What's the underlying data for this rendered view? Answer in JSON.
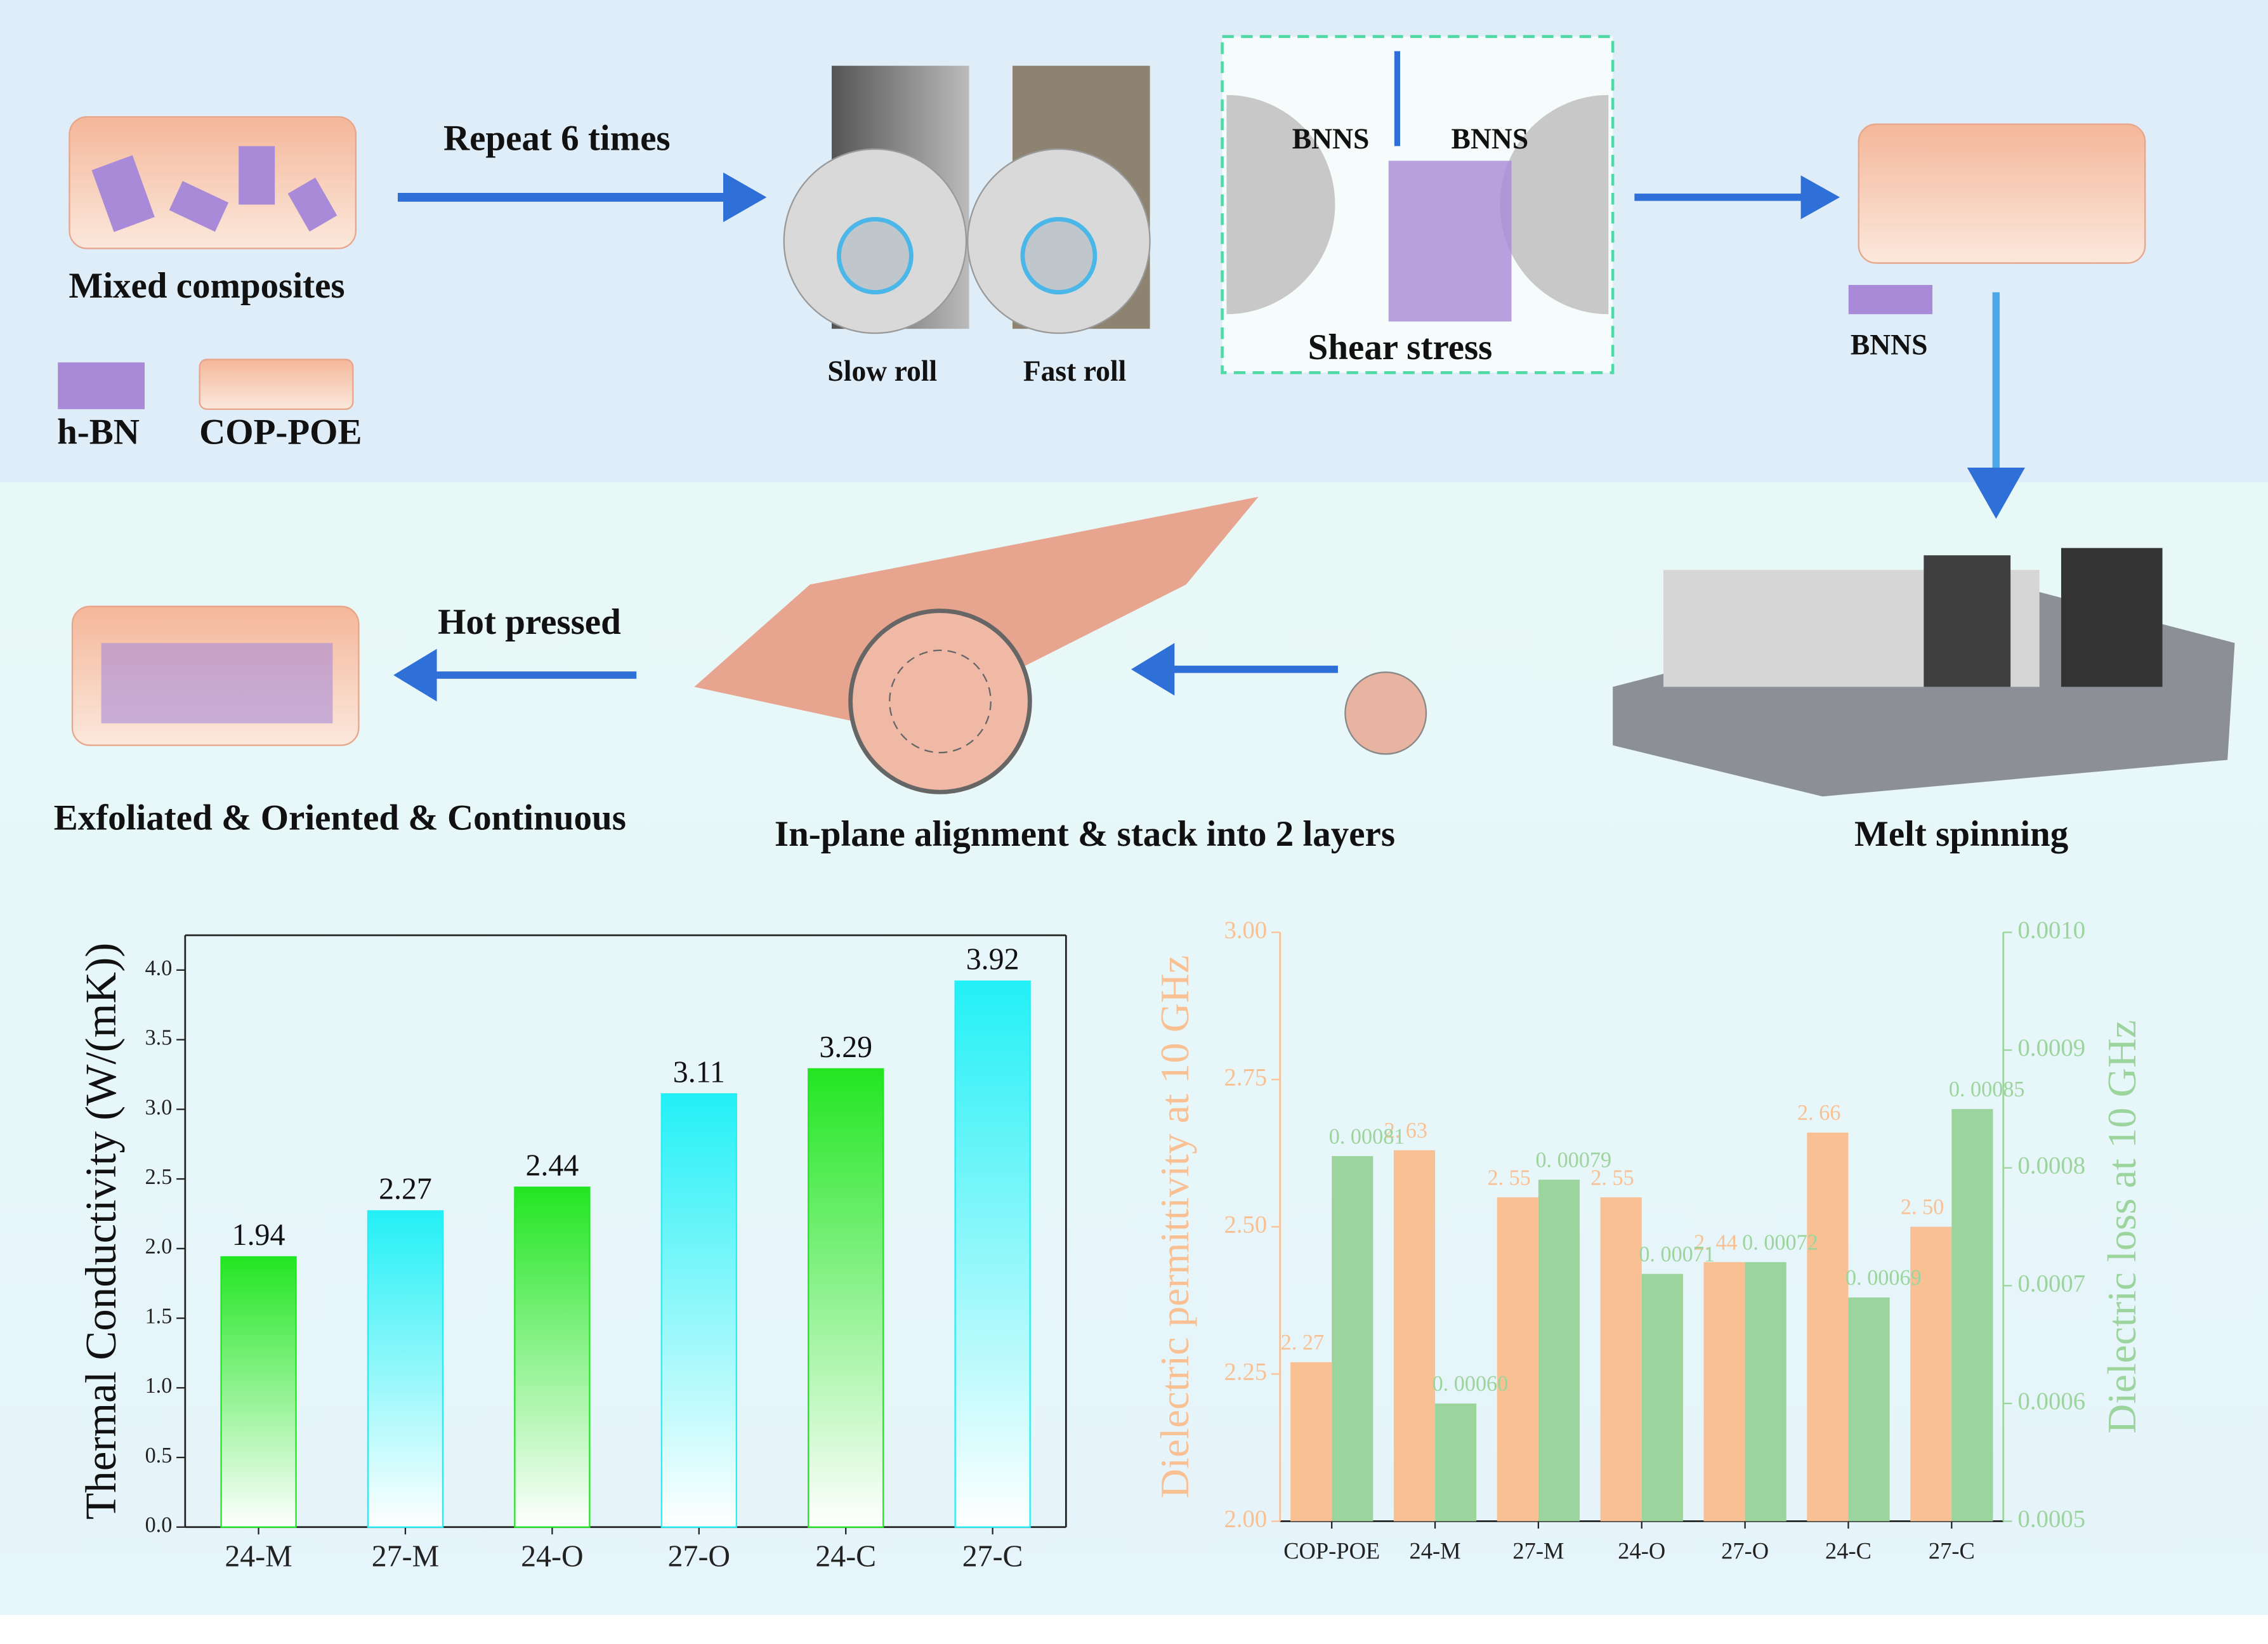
{
  "diagram": {
    "repeat": "Repeat 6 times",
    "mixed": "Mixed composites",
    "hbn": "h-BN",
    "cop": "COP-POE",
    "slow": "Slow roll",
    "fast": "Fast roll",
    "bnns_left": "BNNS",
    "bnns_right": "BNNS",
    "shear": "Shear stress",
    "bnns_box": "BNNS",
    "hot": "Hot pressed",
    "exfoliated": "Exfoliated & Oriented & Continuous",
    "inplane": "In-plane alignment & stack into 2 layers",
    "melt": "Melt spinning"
  },
  "chart_data": [
    {
      "type": "bar",
      "ylabel": "Thermal Conductivity (W/(mK))",
      "categories": [
        "24-M",
        "27-M",
        "24-O",
        "27-O",
        "24-C",
        "27-C"
      ],
      "values": [
        1.94,
        2.27,
        2.44,
        3.11,
        3.29,
        3.92
      ],
      "colors": [
        "#22e622",
        "#22f0f6",
        "#22e622",
        "#22f0f6",
        "#22e622",
        "#22f0f6"
      ],
      "ylim": [
        0,
        4.25
      ],
      "yticks": [
        {
          "value": 0,
          "label": "0.0"
        },
        0.5,
        {
          "value": 1,
          "label": "1.0"
        },
        1.5,
        {
          "value": 2,
          "label": "2.0"
        },
        2.5,
        {
          "value": 3,
          "label": "3.0"
        },
        3.5,
        {
          "value": 4,
          "label": "4.0"
        }
      ]
    },
    {
      "type": "bar",
      "ylabel": "Dielectric permittivity at 10 GHz",
      "y2label": "Dielectric loss at 10 GHz",
      "categories": [
        "COP-POE",
        "24-M",
        "27-M",
        "24-O",
        "27-O",
        "24-C",
        "27-C"
      ],
      "series": [
        {
          "color": "#f9c193",
          "values": [
            2.27,
            2.63,
            2.55,
            2.55,
            2.44,
            2.66,
            2.5
          ],
          "value_labels": [
            "2. 27",
            "2. 63",
            "2. 55",
            "2. 55",
            "2. 44",
            "2. 66",
            "2. 50"
          ]
        },
        {
          "color": "#9cd49d",
          "axis": "y2",
          "values": [
            0.00081,
            0.0006,
            0.00079,
            0.00071,
            0.00072,
            0.00069,
            0.00085
          ],
          "value_labels": [
            "0. 00081",
            "0. 00060",
            "0. 00079",
            "0. 00071",
            "0. 00072",
            "0. 00069",
            "0. 00085"
          ]
        }
      ],
      "ylim": [
        2,
        3
      ],
      "yticks": [
        {
          "value": 2,
          "label": "2.00"
        },
        2.25,
        {
          "value": 2.5,
          "label": "2.50"
        },
        2.75,
        {
          "value": 3,
          "label": "3.00"
        }
      ],
      "y2lim": [
        0.0005,
        0.001
      ],
      "y2ticks": [
        0.0005,
        0.0006,
        0.0007,
        0.0008,
        0.0009,
        {
          "value": 0.001,
          "label": "0.0010"
        }
      ]
    }
  ]
}
